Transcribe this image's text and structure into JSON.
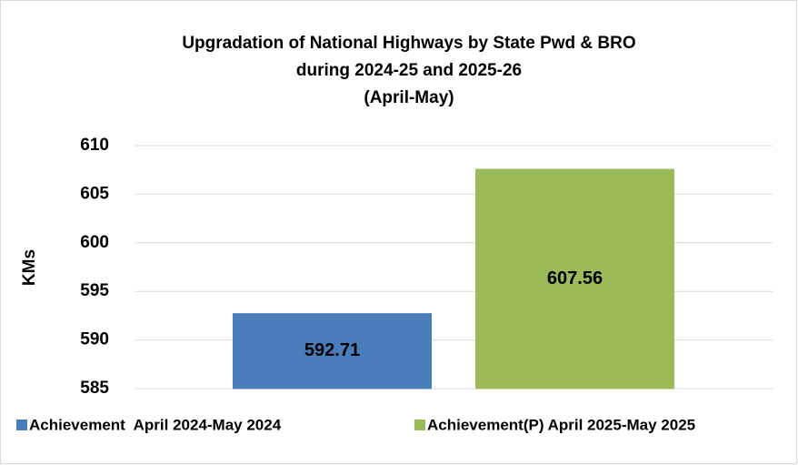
{
  "chart_data": {
    "type": "bar",
    "title": [
      "Upgradation of National Highways by State Pwd & BRO",
      "during 2024-25 and 2025-26",
      "(April-May)"
    ],
    "y_label": "KMs",
    "categories": [
      null
    ],
    "series": [
      {
        "name": "Achievement  April 2024-May 2024",
        "color": "#4a7ebb",
        "values": [
          592.71
        ]
      },
      {
        "name": "Achievement(P) April 2025-May 2025",
        "color": "#9bbb59",
        "values": [
          607.56
        ]
      }
    ],
    "ylim": [
      585,
      610
    ],
    "yticks": [
      585,
      590,
      595,
      600,
      605,
      610
    ],
    "grid": true,
    "legend": "bottom"
  }
}
